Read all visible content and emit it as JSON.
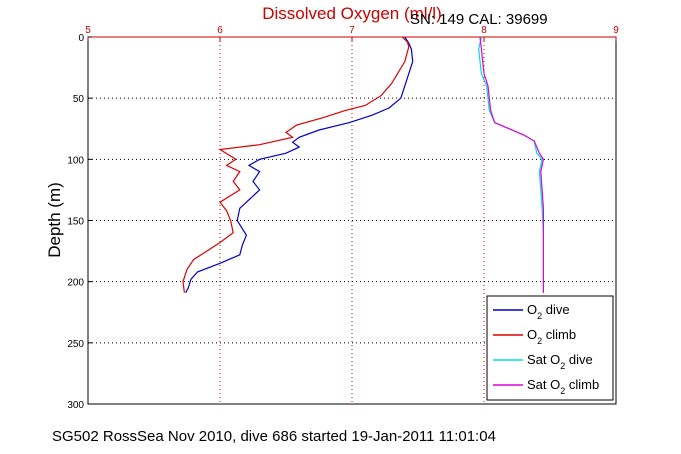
{
  "chart_data": {
    "type": "line",
    "title": "Dissolved Oxygen (ml/l)",
    "serial_label": "SN: 149  CAL: 39699",
    "ylabel": "Depth (m)",
    "xlabel": "",
    "xlim": [
      5,
      9
    ],
    "ylim": [
      0,
      300
    ],
    "x_ticks": [
      "5",
      "6",
      "7",
      "8",
      "9"
    ],
    "y_ticks": [
      "0",
      "50",
      "100",
      "150",
      "200",
      "250",
      "300"
    ],
    "grid": true,
    "legend_position": "bottom-right",
    "colors": {
      "title": "#cc0000",
      "top_axis": "#cc0000",
      "o2_dive": "#0000cc",
      "o2_climb": "#dd0000",
      "sat_dive": "#00dddd",
      "sat_climb": "#dd00dd"
    },
    "series": [
      {
        "name": "O2 dive",
        "legend_main": "O",
        "legend_sub": "2",
        "legend_rest": " dive",
        "color": "#0000cc",
        "x": [
          7.4,
          7.43,
          7.45,
          7.46,
          7.4,
          7.37,
          7.28,
          7.15,
          6.98,
          6.75,
          6.6,
          6.55,
          6.6,
          6.5,
          6.3,
          6.22,
          6.3,
          6.25,
          6.3,
          6.2,
          6.15,
          6.13,
          6.2,
          6.17,
          6.15,
          6.0,
          5.83,
          5.78,
          5.76,
          5.74
        ],
        "y": [
          0,
          5,
          10,
          20,
          40,
          50,
          58,
          64,
          70,
          76,
          82,
          86,
          90,
          95,
          100,
          105,
          110,
          118,
          125,
          135,
          140,
          150,
          162,
          170,
          178,
          185,
          192,
          198,
          205,
          209
        ]
      },
      {
        "name": "O2 climb",
        "legend_main": "O",
        "legend_sub": "2",
        "legend_rest": " climb",
        "color": "#dd0000",
        "x": [
          7.38,
          7.42,
          7.43,
          7.4,
          7.3,
          7.22,
          7.1,
          6.95,
          6.78,
          6.58,
          6.5,
          6.55,
          6.3,
          6.0,
          6.12,
          6.05,
          6.15,
          6.1,
          6.15,
          6.0,
          6.05,
          6.08,
          6.1,
          6.0,
          5.9,
          5.8,
          5.75,
          5.72,
          5.73
        ],
        "y": [
          0,
          4,
          8,
          20,
          38,
          48,
          56,
          60,
          66,
          72,
          78,
          82,
          88,
          92,
          100,
          105,
          110,
          118,
          125,
          135,
          142,
          150,
          160,
          168,
          175,
          182,
          190,
          200,
          209
        ]
      },
      {
        "name": "Sat O2 dive",
        "legend_main": "Sat O",
        "legend_sub": "2",
        "legend_rest": " dive",
        "color": "#00dddd",
        "x": [
          7.98,
          7.96,
          7.97,
          7.98,
          8.02,
          8.03,
          8.04,
          8.08,
          8.3,
          8.38,
          8.4,
          8.44,
          8.42,
          8.43,
          8.44,
          8.45,
          8.45,
          8.45
        ],
        "y": [
          0,
          10,
          20,
          30,
          40,
          50,
          60,
          70,
          80,
          85,
          95,
          100,
          110,
          125,
          140,
          160,
          185,
          209
        ]
      },
      {
        "name": "Sat O2 climb",
        "legend_main": "Sat O",
        "legend_sub": "2",
        "legend_rest": " climb",
        "color": "#dd00dd",
        "x": [
          7.97,
          7.98,
          7.99,
          8.0,
          8.03,
          8.04,
          8.05,
          8.08,
          8.3,
          8.38,
          8.42,
          8.45,
          8.43,
          8.44,
          8.45,
          8.45,
          8.45,
          8.45
        ],
        "y": [
          0,
          10,
          20,
          30,
          40,
          50,
          60,
          70,
          80,
          85,
          95,
          100,
          110,
          125,
          140,
          160,
          185,
          209
        ]
      }
    ]
  },
  "caption": "SG502 RossSea Nov 2010, dive 686 started 19-Jan-2011 11:01:04"
}
